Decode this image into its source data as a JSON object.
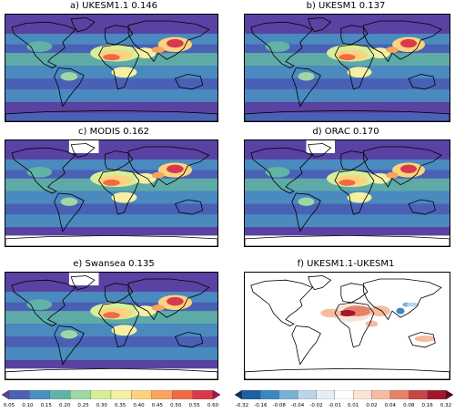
{
  "panels": [
    {
      "title": "a) UKESM1.1 0.146",
      "kind": "model"
    },
    {
      "title": "b) UKESM1 0.137",
      "kind": "model"
    },
    {
      "title": "c) MODIS 0.162",
      "kind": "obs"
    },
    {
      "title": "d) ORAC 0.170",
      "kind": "obs"
    },
    {
      "title": "e) Swansea 0.135",
      "kind": "obs"
    },
    {
      "title": "f) UKESM1.1-UKESM1",
      "kind": "diff"
    }
  ],
  "colorbar_left": {
    "ticks": [
      "0.05",
      "0.10",
      "0.15",
      "0.20",
      "0.25",
      "0.30",
      "0.35",
      "0.40",
      "0.45",
      "0.50",
      "0.55",
      "0.60"
    ],
    "colors": [
      "#5b3f9e",
      "#4a61b5",
      "#4a8fc0",
      "#61b3a5",
      "#9fd7a4",
      "#d5ee9b",
      "#f6f0a3",
      "#fdd27f",
      "#f9a45c",
      "#ef6a45",
      "#d83a4c",
      "#a9124f"
    ]
  },
  "colorbar_right": {
    "ticks": [
      "-0.32",
      "-0.16",
      "-0.08",
      "-0.04",
      "-0.02",
      "-0.01",
      "0.01",
      "0.02",
      "0.04",
      "0.08",
      "0.16",
      "0.32"
    ],
    "colors": [
      "#063264",
      "#1e5fa0",
      "#3b88c0",
      "#7ab1d5",
      "#b8d6e8",
      "#e3eef5",
      "#ffffff",
      "#fbe3d6",
      "#f5bca0",
      "#e4836a",
      "#c64640",
      "#a1172f",
      "#67001f"
    ]
  }
}
